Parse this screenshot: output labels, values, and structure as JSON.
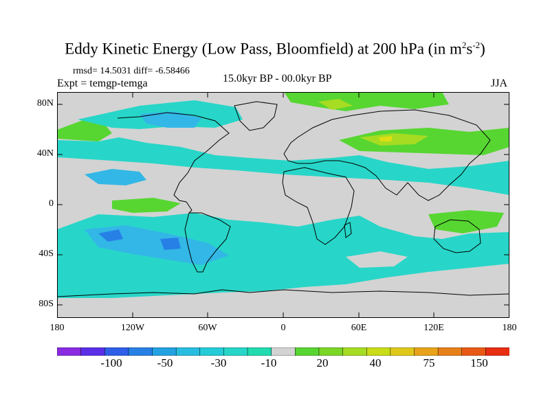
{
  "title": {
    "main": "Eddy Kinetic Energy (Low Pass, Bloomfield) at 200 hPa (in m",
    "exp1": "2",
    "mid": "s",
    "exp2": "-2",
    "end": ")"
  },
  "stats": "rmsd= 14.5031 diff= -6.58466",
  "expt": "Expt = temgp-temga",
  "period": "15.0kyr BP - 00.0kyr BP",
  "season": "JJA",
  "axes": {
    "lat_labels": [
      "80N",
      "40N",
      "0",
      "40S",
      "80S"
    ],
    "lon_labels": [
      "180",
      "120W",
      "60W",
      "0",
      "60E",
      "120E",
      "180"
    ]
  },
  "colors": {
    "land_neutral": "#d3d3d3",
    "ocean_cyan": "#27d6c8",
    "ocean_blue": "#33b7e6",
    "green": "#57d632",
    "yellowgreen": "#a6dc22",
    "yellow": "#dede12"
  },
  "colorbar": {
    "labels": [
      "-100",
      "-50",
      "-30",
      "-10",
      "20",
      "40",
      "75",
      "150"
    ],
    "colors": [
      "#8a2be2",
      "#5b2fe8",
      "#2f5fe8",
      "#2680e6",
      "#23a2e2",
      "#28bde0",
      "#24ccd8",
      "#27d6c8",
      "#22dcb0",
      "#d3d3d3",
      "#57d632",
      "#7bd627",
      "#a6dc22",
      "#c9dc18",
      "#e0c81a",
      "#e8a31a",
      "#e8801a",
      "#e85a16",
      "#e82f12"
    ]
  }
}
